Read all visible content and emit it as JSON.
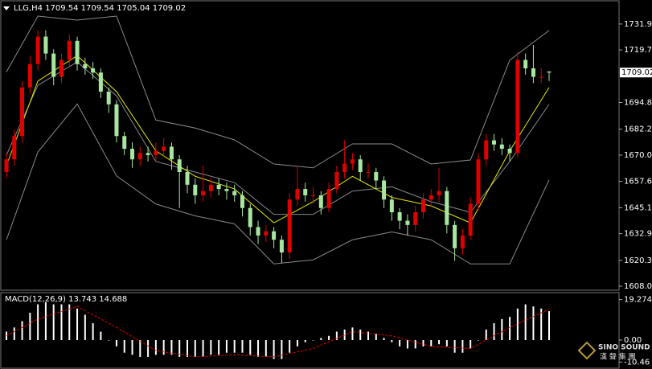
{
  "chart_data": [
    {
      "type": "candlestick",
      "title": "LLG,H4  1709.54 1709.54 1705.04 1709.02",
      "open": [
        1662,
        1668,
        1679,
        1702,
        1713,
        1726,
        1718,
        1707,
        1715,
        1724,
        1713,
        1711,
        1709,
        1700,
        1694,
        1679,
        1673,
        1668,
        1671,
        1670,
        1672,
        1674,
        1668,
        1662,
        1656,
        1651,
        1653,
        1656,
        1654,
        1653,
        1651,
        1645,
        1636,
        1632,
        1634,
        1630,
        1624,
        1649,
        1654,
        1651,
        1651,
        1645,
        1654,
        1662,
        1666,
        1668,
        1662,
        1662,
        1658,
        1649,
        1643,
        1639,
        1637,
        1643,
        1649,
        1651,
        1653,
        1637,
        1626,
        1632,
        1647,
        1668,
        1677,
        1675,
        1673,
        1671,
        1715,
        1711,
        1707,
        1709.54
      ],
      "high": [
        1671,
        1682,
        1705,
        1717,
        1729,
        1729,
        1720,
        1718,
        1727,
        1726,
        1716,
        1714,
        1711,
        1702,
        1696,
        1681,
        1676,
        1674,
        1674,
        1676,
        1678,
        1676,
        1670,
        1665,
        1659,
        1665,
        1659,
        1659,
        1657,
        1656,
        1653,
        1647,
        1639,
        1637,
        1636,
        1632,
        1652,
        1665,
        1657,
        1655,
        1653,
        1657,
        1665,
        1677,
        1671,
        1670,
        1666,
        1664,
        1660,
        1651,
        1645,
        1642,
        1646,
        1652,
        1654,
        1664,
        1655,
        1639,
        1635,
        1650,
        1671,
        1680,
        1680,
        1678,
        1675,
        1719,
        1718,
        1722,
        1711,
        1709.54
      ],
      "low": [
        1659,
        1665,
        1676,
        1699,
        1710,
        1715,
        1703,
        1704,
        1712,
        1710,
        1708,
        1706,
        1697,
        1690,
        1676,
        1670,
        1664,
        1665,
        1667,
        1667,
        1669,
        1663,
        1645,
        1652,
        1647,
        1648,
        1650,
        1651,
        1649,
        1648,
        1641,
        1632,
        1628,
        1629,
        1626,
        1619,
        1621,
        1646,
        1648,
        1647,
        1642,
        1643,
        1652,
        1659,
        1663,
        1658,
        1659,
        1654,
        1645,
        1639,
        1635,
        1632,
        1634,
        1640,
        1646,
        1648,
        1633,
        1620,
        1623,
        1630,
        1644,
        1665,
        1672,
        1670,
        1667,
        1669,
        1708,
        1704,
        1704,
        1705.04
      ],
      "close": [
        1668,
        1679,
        1702,
        1713,
        1726,
        1718,
        1707,
        1715,
        1724,
        1713,
        1711,
        1709,
        1700,
        1694,
        1679,
        1673,
        1668,
        1671,
        1670,
        1672,
        1674,
        1668,
        1662,
        1656,
        1651,
        1653,
        1656,
        1654,
        1653,
        1651,
        1645,
        1636,
        1632,
        1634,
        1630,
        1624,
        1649,
        1654,
        1651,
        1651,
        1645,
        1654,
        1662,
        1666,
        1668,
        1662,
        1662,
        1658,
        1649,
        1643,
        1639,
        1637,
        1643,
        1649,
        1651,
        1653,
        1637,
        1626,
        1632,
        1647,
        1668,
        1677,
        1675,
        1673,
        1671,
        1715,
        1711,
        1707,
        1707,
        1709.02
      ],
      "up_color": "#e00000",
      "down_color": "#a8e6a0",
      "lines": [
        {
          "x": [
            1,
            5,
            10,
            15,
            20,
            25,
            30,
            35,
            40,
            45,
            50,
            55,
            60,
            65,
            70
          ],
          "values": [
            1709.3,
            1735.7,
            1733.8,
            1735.7,
            1686.6,
            1682.8,
            1677.2,
            1665.8,
            1664,
            1675.3,
            1675.3,
            1665.8,
            1667.7,
            1714.9,
            1728.9
          ],
          "color": "#8a8a8a"
        },
        {
          "x": [
            1,
            5,
            10,
            15,
            20,
            25,
            30,
            35,
            40,
            45,
            50,
            55,
            60,
            65,
            70
          ],
          "values": [
            1670,
            1703,
            1714,
            1698,
            1667,
            1662,
            1657,
            1642,
            1642,
            1653,
            1655,
            1648,
            1643,
            1667,
            1694
          ],
          "color": "#8a8a8a"
        },
        {
          "x": [
            1,
            5,
            10,
            15,
            20,
            25,
            30,
            35,
            40,
            45,
            50,
            55,
            60,
            65,
            70
          ],
          "values": [
            1630,
            1671.5,
            1694.2,
            1660.2,
            1646.9,
            1641.3,
            1637.5,
            1618.6,
            1620.5,
            1630,
            1633.7,
            1630,
            1618.6,
            1618.6,
            1658.3
          ],
          "color": "#8a8a8a"
        },
        {
          "x": [
            1,
            5,
            10,
            15,
            20,
            25,
            30,
            35,
            40,
            45,
            50,
            55,
            60,
            65,
            70
          ],
          "values": [
            1665,
            1705,
            1717,
            1700,
            1672,
            1660,
            1654,
            1638,
            1648,
            1660,
            1650,
            1646,
            1638,
            1672,
            1702
          ],
          "color": "#e8e800"
        }
      ],
      "last_price": 1709.02,
      "ylim": [
        1607.3,
        1743.3
      ],
      "yticks": [
        1731.95,
        {
          "value": 1719.7,
          "label": "1719.70"
        },
        1694.85,
        1682.25,
        {
          "value": 1670,
          "label": "1670.00"
        },
        {
          "value": 1657.6,
          "label": "1657.60"
        },
        1645.15,
        {
          "value": 1632.9,
          "label": "1632.90"
        },
        {
          "value": 1620.3,
          "label": "1620.30"
        },
        1608.05
      ]
    },
    {
      "type": "macd",
      "title": "MACD(12,26,9) 13.743 14.688",
      "values": [
        4,
        6,
        9,
        13,
        17,
        18,
        17,
        17,
        17,
        15,
        12,
        8,
        4,
        0,
        -3,
        -6,
        -7,
        -8,
        -8,
        -7,
        -7,
        -7,
        -8,
        -8,
        -8,
        -8,
        -7,
        -7,
        -6,
        -6,
        -6,
        -7,
        -8,
        -8,
        -9,
        -9,
        -6,
        -3,
        -1,
        0,
        1,
        2,
        4,
        5,
        6,
        5,
        4,
        3,
        1,
        -1,
        -3,
        -4,
        -4,
        -3,
        -3,
        -2,
        -3,
        -6,
        -6,
        -4,
        0,
        5,
        8,
        10,
        11,
        15,
        17,
        16,
        15,
        13.743
      ],
      "color": "#ffffff",
      "signal": {
        "x": [
          1,
          5,
          10,
          15,
          20,
          25,
          30,
          35,
          40,
          45,
          50,
          55,
          60,
          65,
          70
        ],
        "values": [
          2,
          10,
          16,
          6,
          -5,
          -8,
          -7,
          -8,
          -4,
          4,
          2,
          -3,
          -4,
          6,
          14.688
        ],
        "color": "#e00000"
      },
      "ylim": [
        -13,
        21.8
      ],
      "yticks": [
        19.274,
        {
          "value": 0,
          "label": "0.00"
        },
        -10.46
      ]
    }
  ],
  "watermark": {
    "brand": "SINO SOUND",
    "chinese": "漢 聲 集 團"
  }
}
